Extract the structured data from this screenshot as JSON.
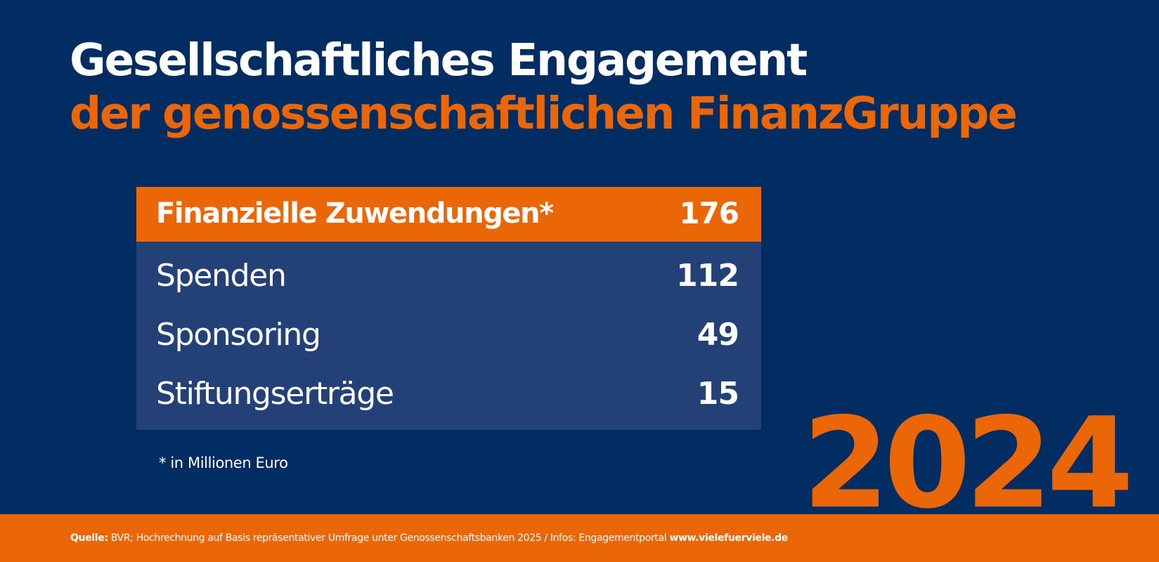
{
  "header": {
    "title_line1": "Gesellschaftliches Engagement",
    "title_line2": "der genossenschaftlichen FinanzGruppe"
  },
  "table": {
    "header": {
      "label": "Finanzielle Zuwendungen*",
      "value": "176"
    },
    "rows": [
      {
        "label": "Spenden",
        "value": "112"
      },
      {
        "label": "Sponsoring",
        "value": "49"
      },
      {
        "label": "Stiftungserträge",
        "value": "15"
      }
    ]
  },
  "footnote": "* in Millionen Euro",
  "year": "2024",
  "footer": {
    "source_label": "Quelle:",
    "source_text": " BVR; Hochrechnung auf Basis repräsentativer Umfrage unter Genossenschaftsbanken 2025 / Infos: Engagementportal ",
    "link": "www.vielefuerviele.de"
  },
  "colors": {
    "background": "#012d62",
    "accent": "#ea6606",
    "table_body": "#234177",
    "text": "#ffffff"
  }
}
